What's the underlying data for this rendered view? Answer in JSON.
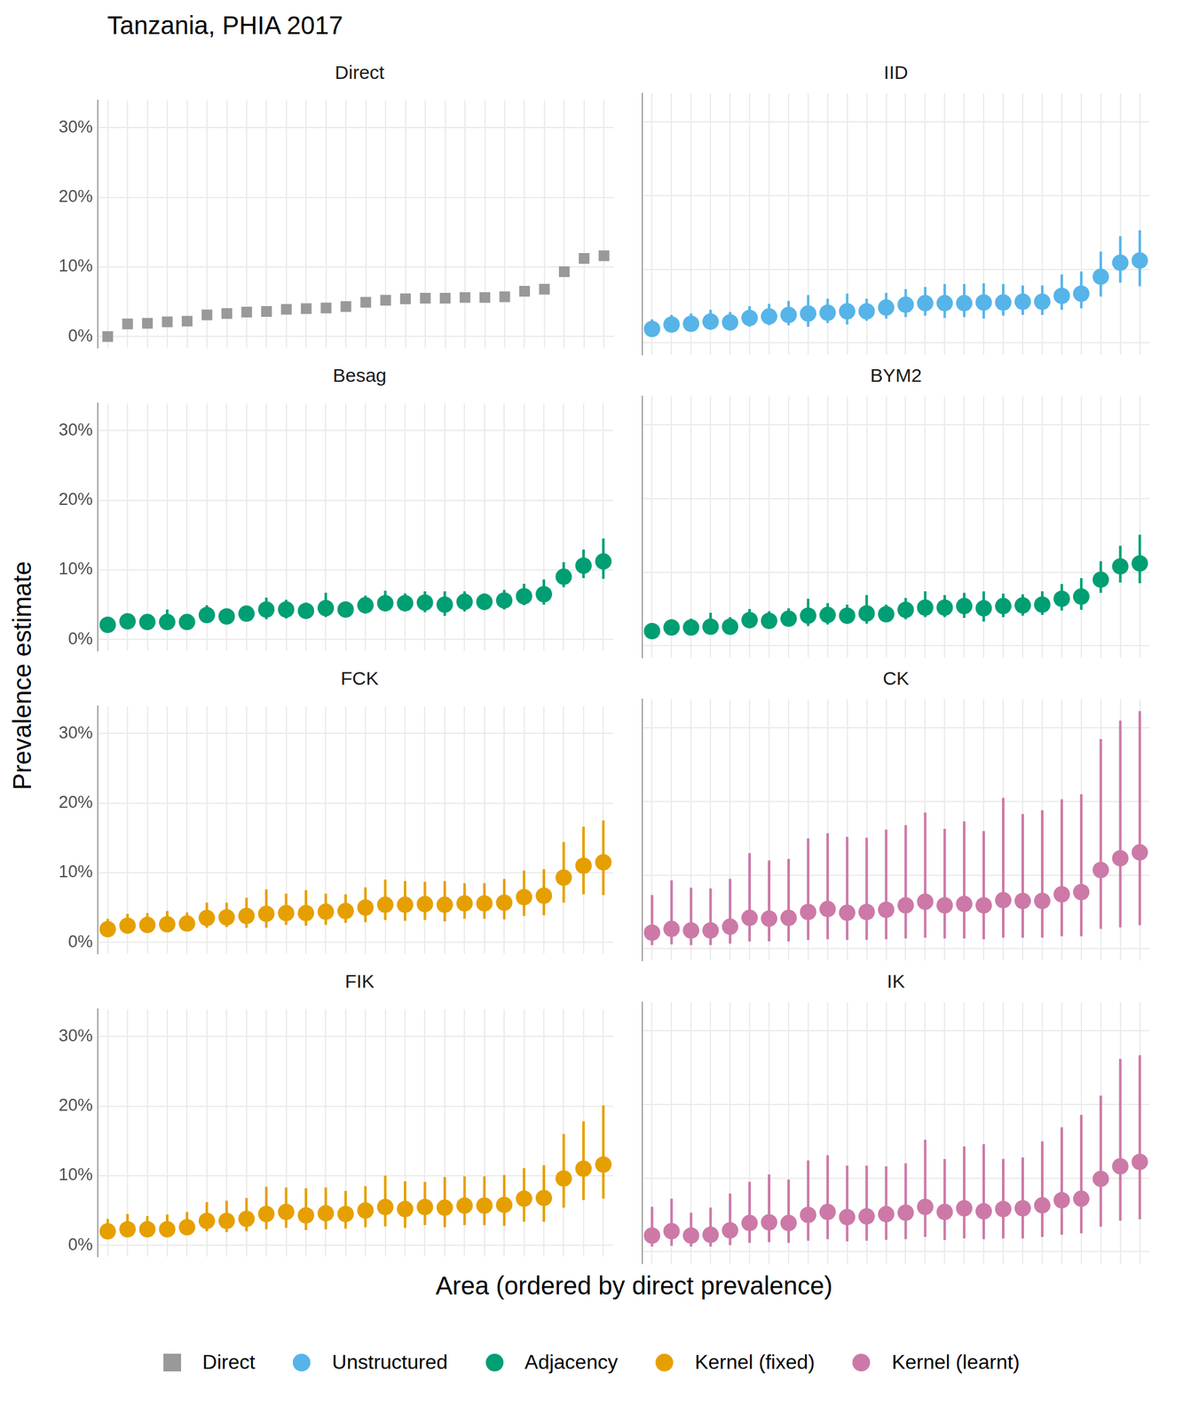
{
  "chart_data": {
    "type": "scatter",
    "title": "Tanzania, PHIA 2017",
    "x_label": "Area (ordered by direct prevalence)",
    "y_label": "Prevalence estimate",
    "categories": [
      null,
      null,
      null,
      null,
      null,
      null,
      null,
      null,
      null,
      null,
      null,
      null,
      null,
      null,
      null,
      null,
      null,
      null,
      null,
      null,
      null,
      null,
      null,
      null,
      null,
      null
    ],
    "ylim": [
      -1.6,
      33.9
    ],
    "yticks": [
      {
        "value": 0,
        "label": "0%"
      },
      {
        "value": 10,
        "label": "10%"
      },
      {
        "value": 20,
        "label": "20%"
      },
      {
        "value": 30,
        "label": "30%"
      }
    ],
    "grid": true,
    "legend": "bottom",
    "panels": [
      {
        "title": "Direct",
        "tick_labels": "y",
        "series": [
          {
            "name": "Direct",
            "color": "#999999",
            "marker": "square",
            "values": [
              0,
              1.8,
              1.9,
              2.1,
              2.2,
              3.1,
              3.3,
              3.5,
              3.6,
              3.9,
              4.0,
              4.1,
              4.3,
              4.9,
              5.2,
              5.4,
              5.5,
              5.5,
              5.6,
              5.6,
              5.7,
              6.5,
              6.8,
              9.3,
              11.2,
              11.6
            ]
          }
        ]
      },
      {
        "title": "IID",
        "tick_labels": false,
        "series": [
          {
            "name": "Unstructured",
            "color": "#56B4E9",
            "marker": "circle",
            "values": [
              1.9,
              2.5,
              2.6,
              2.9,
              2.8,
              3.4,
              3.6,
              3.8,
              4.0,
              4.1,
              4.3,
              4.3,
              4.8,
              5.2,
              5.4,
              5.4,
              5.4,
              5.5,
              5.5,
              5.6,
              5.6,
              6.4,
              6.7,
              9.0,
              10.9,
              11.2
            ],
            "lower": [
              1.0,
              1.5,
              1.6,
              1.8,
              1.7,
              2.2,
              2.4,
              2.4,
              2.2,
              2.7,
              2.5,
              3.0,
              3.3,
              3.5,
              3.7,
              3.4,
              3.5,
              3.3,
              3.7,
              3.8,
              3.8,
              4.5,
              4.7,
              6.3,
              8.2,
              7.7
            ],
            "upper": [
              3.2,
              3.8,
              4.0,
              4.5,
              4.2,
              5.0,
              5.3,
              5.7,
              6.5,
              6.0,
              6.7,
              6.0,
              6.8,
              7.3,
              7.6,
              8.0,
              8.0,
              8.1,
              8.0,
              7.8,
              7.8,
              9.3,
              9.7,
              12.4,
              14.5,
              15.3
            ]
          }
        ]
      },
      {
        "title": "Besag",
        "tick_labels": "y",
        "series": [
          {
            "name": "Adjacency",
            "color": "#009E73",
            "marker": "circle",
            "values": [
              2.1,
              2.6,
              2.5,
              2.5,
              2.5,
              3.5,
              3.3,
              3.7,
              4.3,
              4.3,
              4.1,
              4.5,
              4.3,
              4.9,
              5.2,
              5.2,
              5.3,
              5.0,
              5.4,
              5.4,
              5.6,
              6.2,
              6.5,
              9.0,
              10.6,
              11.2
            ],
            "lower": [
              1.4,
              1.9,
              1.7,
              1.6,
              1.6,
              2.5,
              2.4,
              2.7,
              2.9,
              3.0,
              3.1,
              3.2,
              3.3,
              3.7,
              4.0,
              4.0,
              3.9,
              3.4,
              4.0,
              4.2,
              4.3,
              4.9,
              5.0,
              7.5,
              8.8,
              8.7
            ],
            "upper": [
              2.9,
              3.5,
              3.5,
              4.3,
              3.6,
              4.9,
              4.4,
              4.8,
              6.0,
              5.7,
              5.3,
              6.7,
              5.4,
              6.3,
              7.0,
              6.6,
              6.9,
              6.9,
              6.9,
              6.6,
              7.1,
              8.0,
              8.6,
              11.1,
              12.9,
              14.5
            ]
          }
        ]
      },
      {
        "title": "BYM2",
        "tick_labels": false,
        "series": [
          {
            "name": "Adjacency",
            "color": "#009E73",
            "marker": "circle",
            "values": [
              2.0,
              2.5,
              2.5,
              2.6,
              2.6,
              3.5,
              3.4,
              3.7,
              4.1,
              4.2,
              4.1,
              4.4,
              4.3,
              4.9,
              5.2,
              5.2,
              5.4,
              5.1,
              5.4,
              5.5,
              5.6,
              6.4,
              6.7,
              9.0,
              10.8,
              11.2
            ],
            "lower": [
              1.2,
              1.7,
              1.6,
              1.6,
              1.6,
              2.4,
              2.4,
              2.6,
              2.7,
              2.9,
              3.0,
              3.0,
              3.2,
              3.6,
              3.9,
              3.9,
              3.8,
              3.3,
              3.9,
              4.1,
              4.2,
              4.8,
              4.9,
              7.2,
              8.6,
              8.5
            ],
            "upper": [
              3.0,
              3.6,
              3.7,
              4.5,
              3.9,
              5.0,
              4.7,
              5.1,
              6.4,
              5.8,
              5.6,
              6.9,
              5.6,
              6.5,
              7.4,
              6.9,
              7.2,
              7.4,
              7.1,
              7.0,
              7.4,
              8.4,
              9.2,
              11.5,
              13.6,
              15.1
            ]
          }
        ]
      },
      {
        "title": "FCK",
        "tick_labels": "y",
        "series": [
          {
            "name": "Kernel (fixed)",
            "color": "#E69F00",
            "marker": "circle",
            "values": [
              1.9,
              2.4,
              2.5,
              2.6,
              2.7,
              3.5,
              3.6,
              3.8,
              4.1,
              4.2,
              4.2,
              4.4,
              4.5,
              5.0,
              5.4,
              5.4,
              5.5,
              5.4,
              5.6,
              5.6,
              5.7,
              6.5,
              6.7,
              9.3,
              11.0,
              11.5
            ],
            "lower": [
              1.1,
              1.4,
              1.4,
              1.5,
              1.6,
              2.1,
              2.2,
              2.1,
              2.1,
              2.5,
              2.4,
              2.5,
              2.8,
              2.9,
              3.2,
              3.1,
              3.2,
              3.0,
              3.4,
              3.4,
              3.3,
              3.8,
              3.9,
              5.7,
              6.9,
              6.8
            ],
            "upper": [
              3.4,
              4.1,
              4.2,
              4.5,
              4.3,
              5.7,
              5.7,
              6.4,
              7.6,
              7.0,
              7.5,
              7.0,
              6.9,
              7.9,
              9.0,
              8.8,
              8.7,
              8.8,
              8.5,
              8.5,
              9.1,
              10.3,
              10.5,
              14.4,
              16.6,
              17.5
            ]
          }
        ]
      },
      {
        "title": "CK",
        "tick_labels": false,
        "series": [
          {
            "name": "Kernel (learnt)",
            "color": "#CC79A7",
            "marker": "circle",
            "values": [
              2.2,
              2.7,
              2.5,
              2.5,
              3.0,
              4.2,
              4.1,
              4.2,
              5.0,
              5.4,
              4.9,
              5.0,
              5.3,
              5.9,
              6.4,
              5.9,
              6.1,
              5.9,
              6.6,
              6.5,
              6.5,
              7.4,
              7.7,
              10.7,
              12.3,
              13.1
            ],
            "lower": [
              0.5,
              0.6,
              0.5,
              0.5,
              0.7,
              1.0,
              1.0,
              1.0,
              1.2,
              1.3,
              1.2,
              1.2,
              1.3,
              1.4,
              1.5,
              1.4,
              1.4,
              1.3,
              1.5,
              1.5,
              1.5,
              1.7,
              1.7,
              2.7,
              2.9,
              3.2
            ],
            "upper": [
              7.3,
              9.3,
              8.3,
              8.2,
              9.5,
              13.0,
              12.0,
              12.2,
              15.0,
              15.7,
              15.2,
              15.1,
              16.2,
              16.8,
              18.5,
              16.3,
              17.3,
              16.0,
              20.5,
              18.3,
              18.8,
              20.3,
              21.0,
              28.5,
              31.0,
              32.3
            ]
          }
        ]
      },
      {
        "title": "FIK",
        "tick_labels": "y",
        "series": [
          {
            "name": "Kernel (fixed)",
            "color": "#E69F00",
            "marker": "circle",
            "values": [
              2.0,
              2.3,
              2.3,
              2.3,
              2.6,
              3.5,
              3.5,
              3.8,
              4.5,
              4.8,
              4.3,
              4.6,
              4.5,
              5.0,
              5.5,
              5.2,
              5.5,
              5.4,
              5.7,
              5.7,
              5.8,
              6.7,
              6.8,
              9.6,
              11.0,
              11.6
            ],
            "lower": [
              1.1,
              1.2,
              1.3,
              1.2,
              1.5,
              2.0,
              1.9,
              2.0,
              2.3,
              2.5,
              2.2,
              2.3,
              2.4,
              2.6,
              2.7,
              2.5,
              2.9,
              2.6,
              2.9,
              2.9,
              2.8,
              3.4,
              3.4,
              5.4,
              6.5,
              6.7
            ],
            "upper": [
              3.8,
              4.5,
              4.2,
              4.4,
              4.8,
              6.2,
              6.4,
              6.8,
              8.4,
              8.3,
              8.2,
              8.3,
              7.8,
              8.5,
              10.0,
              9.2,
              9.1,
              9.8,
              9.9,
              9.9,
              10.1,
              11.1,
              11.5,
              16.0,
              17.8,
              20.1
            ]
          }
        ]
      },
      {
        "title": "IK",
        "tick_labels": false,
        "series": [
          {
            "name": "Kernel (learnt)",
            "color": "#CC79A7",
            "marker": "circle",
            "values": [
              2.2,
              2.8,
              2.2,
              2.3,
              2.9,
              3.9,
              4.0,
              3.9,
              5.0,
              5.4,
              4.7,
              4.8,
              5.1,
              5.3,
              6.1,
              5.4,
              5.9,
              5.5,
              5.8,
              5.9,
              6.3,
              7.0,
              7.2,
              9.9,
              11.6,
              12.2
            ],
            "lower": [
              0.7,
              0.8,
              0.7,
              0.7,
              0.9,
              1.2,
              1.3,
              1.2,
              1.5,
              1.7,
              1.4,
              1.5,
              1.6,
              1.7,
              2.0,
              1.6,
              1.8,
              1.7,
              1.8,
              1.8,
              2.0,
              2.3,
              2.5,
              3.4,
              4.2,
              4.4
            ],
            "upper": [
              6.1,
              7.2,
              5.3,
              6.0,
              7.9,
              9.5,
              10.5,
              9.8,
              12.4,
              13.1,
              11.7,
              11.7,
              11.6,
              12.0,
              15.2,
              12.6,
              14.3,
              14.6,
              12.6,
              12.8,
              15.0,
              16.9,
              18.6,
              21.2,
              26.2,
              26.7
            ]
          }
        ]
      }
    ]
  }
}
